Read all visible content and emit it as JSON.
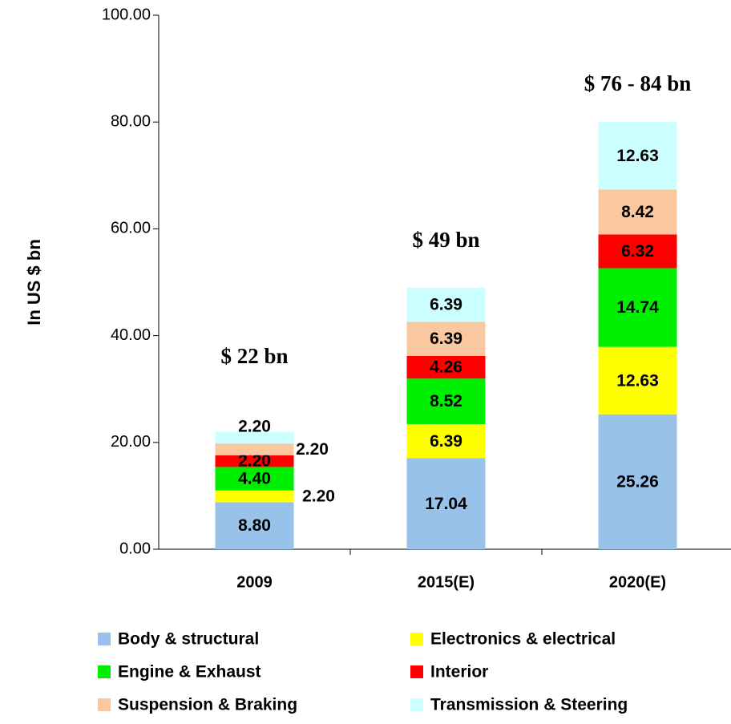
{
  "chart_data": {
    "type": "stacked_bar",
    "ylabel": "In US $ bn",
    "categories": [
      "2009",
      "2015(E)",
      "2020(E)"
    ],
    "series": [
      {
        "name": "Body & structural",
        "color": "#99c2ea",
        "values": [
          8.8,
          17.04,
          25.26
        ],
        "value_labels": [
          "8.80",
          "17.04",
          "25.26"
        ]
      },
      {
        "name": "Electronics & electrical",
        "color": "#ffff00",
        "values": [
          2.2,
          6.39,
          12.63
        ],
        "value_labels": [
          "2.20",
          "6.39",
          "12.63"
        ]
      },
      {
        "name": "Engine & Exhaust",
        "color": "#00ee00",
        "values": [
          4.4,
          8.52,
          14.74
        ],
        "value_labels": [
          "4.40",
          "8.52",
          "14.74"
        ]
      },
      {
        "name": "Interior",
        "color": "#ff0000",
        "values": [
          2.2,
          4.26,
          6.32
        ],
        "value_labels": [
          "2.20",
          "4.26",
          "6.32"
        ]
      },
      {
        "name": "Suspension & Braking",
        "color": "#fac8a0",
        "values": [
          2.2,
          6.39,
          8.42
        ],
        "value_labels": [
          "2.20",
          "6.39",
          "8.42"
        ]
      },
      {
        "name": "Transmission & Steering",
        "color": "#ccffff",
        "values": [
          2.2,
          6.39,
          12.63
        ],
        "value_labels": [
          "2.20",
          "6.39",
          "12.63"
        ]
      }
    ],
    "annotations": [
      "$ 22 bn",
      "$ 49 bn",
      "$ 76 - 84 bn"
    ],
    "ylim": [
      0,
      100
    ],
    "yticks": [
      {
        "value": 0,
        "label": "0.00"
      },
      {
        "value": 20,
        "label": "20.00"
      },
      {
        "value": 40,
        "label": "40.00"
      },
      {
        "value": 60,
        "label": "60.00"
      },
      {
        "value": 80,
        "label": "80.00"
      },
      {
        "value": 100,
        "label": "100.00"
      }
    ]
  }
}
